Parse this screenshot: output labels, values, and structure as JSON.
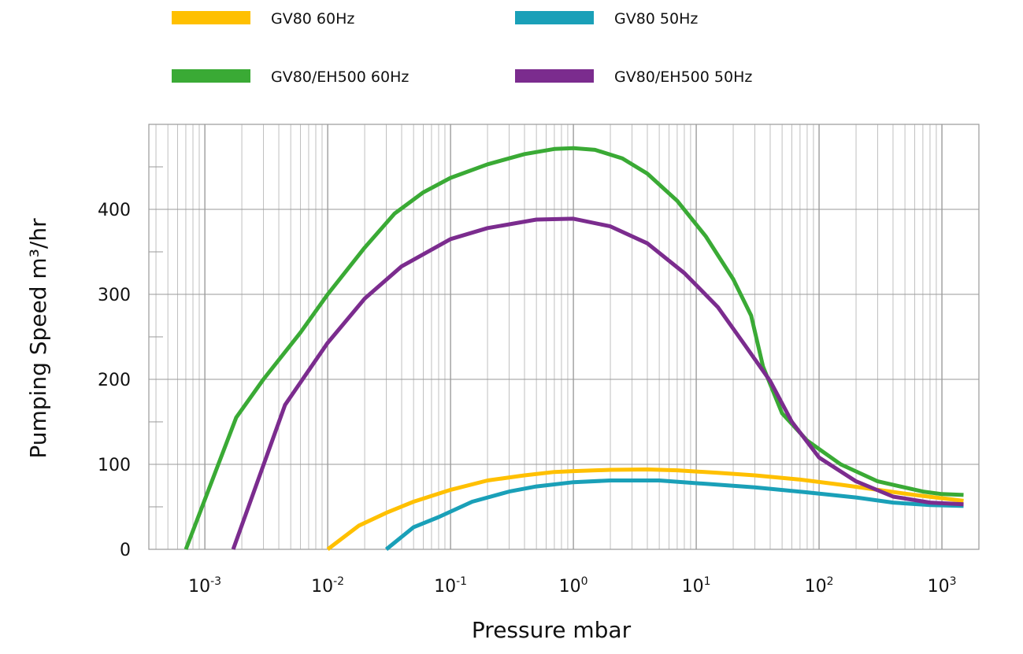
{
  "chart_data": {
    "type": "line",
    "xscale": "log",
    "xlim": [
      0.00035,
      2000
    ],
    "ylim": [
      0,
      500
    ],
    "xlabel": "Pressure mbar",
    "ylabel": "Pumping Speed m³/hr",
    "grid": true,
    "legend_position": "top",
    "x_ticks": [
      {
        "value": 0.001,
        "label": "10",
        "exp": "-3"
      },
      {
        "value": 0.01,
        "label": "10",
        "exp": "-2"
      },
      {
        "value": 0.1,
        "label": "10",
        "exp": "-1"
      },
      {
        "value": 1,
        "label": "10",
        "exp": "0"
      },
      {
        "value": 10,
        "label": "10",
        "exp": "1"
      },
      {
        "value": 100,
        "label": "10",
        "exp": "2"
      },
      {
        "value": 1000,
        "label": "10",
        "exp": "3"
      }
    ],
    "y_ticks": [
      0,
      100,
      200,
      300,
      400
    ],
    "series": [
      {
        "name": "GV80 60Hz",
        "color": "#FFC000",
        "points": [
          [
            0.01,
            0
          ],
          [
            0.018,
            28
          ],
          [
            0.03,
            43
          ],
          [
            0.05,
            56
          ],
          [
            0.1,
            70
          ],
          [
            0.2,
            81
          ],
          [
            0.4,
            87
          ],
          [
            0.7,
            91
          ],
          [
            1,
            92
          ],
          [
            2,
            93.5
          ],
          [
            4,
            94
          ],
          [
            7,
            93
          ],
          [
            15,
            90
          ],
          [
            30,
            87
          ],
          [
            70,
            82
          ],
          [
            150,
            76
          ],
          [
            300,
            70
          ],
          [
            600,
            64
          ],
          [
            1500,
            57
          ]
        ]
      },
      {
        "name": "GV80 50Hz",
        "color": "#1AA0B8",
        "points": [
          [
            0.03,
            0
          ],
          [
            0.05,
            26
          ],
          [
            0.08,
            38
          ],
          [
            0.15,
            56
          ],
          [
            0.3,
            68
          ],
          [
            0.5,
            74
          ],
          [
            1,
            79
          ],
          [
            2,
            81
          ],
          [
            5,
            81
          ],
          [
            12,
            77
          ],
          [
            30,
            73
          ],
          [
            80,
            67
          ],
          [
            200,
            61
          ],
          [
            400,
            55
          ],
          [
            800,
            52
          ],
          [
            1500,
            51
          ]
        ]
      },
      {
        "name": "GV80/EH500 60Hz",
        "color": "#3AAA35",
        "points": [
          [
            0.0007,
            0
          ],
          [
            0.0018,
            155
          ],
          [
            0.003,
            200
          ],
          [
            0.006,
            255
          ],
          [
            0.01,
            300
          ],
          [
            0.02,
            355
          ],
          [
            0.035,
            395
          ],
          [
            0.06,
            420
          ],
          [
            0.1,
            437
          ],
          [
            0.2,
            453
          ],
          [
            0.4,
            465
          ],
          [
            0.7,
            471
          ],
          [
            1,
            472
          ],
          [
            1.5,
            470
          ],
          [
            2.5,
            460
          ],
          [
            4,
            442
          ],
          [
            7,
            410
          ],
          [
            12,
            368
          ],
          [
            20,
            318
          ],
          [
            28,
            275
          ],
          [
            35,
            215
          ],
          [
            50,
            160
          ],
          [
            80,
            128
          ],
          [
            150,
            100
          ],
          [
            300,
            80
          ],
          [
            700,
            68
          ],
          [
            1000,
            65
          ],
          [
            1500,
            64
          ]
        ]
      },
      {
        "name": "GV80/EH500 50Hz",
        "color": "#7B2C8E",
        "points": [
          [
            0.0017,
            0
          ],
          [
            0.0045,
            170
          ],
          [
            0.01,
            243
          ],
          [
            0.02,
            295
          ],
          [
            0.04,
            333
          ],
          [
            0.1,
            365
          ],
          [
            0.2,
            378
          ],
          [
            0.5,
            388
          ],
          [
            1,
            389
          ],
          [
            2,
            380
          ],
          [
            4,
            360
          ],
          [
            8,
            325
          ],
          [
            15,
            285
          ],
          [
            25,
            240
          ],
          [
            40,
            198
          ],
          [
            60,
            150
          ],
          [
            100,
            108
          ],
          [
            200,
            80
          ],
          [
            400,
            62
          ],
          [
            800,
            55
          ],
          [
            1500,
            53
          ]
        ]
      }
    ]
  }
}
